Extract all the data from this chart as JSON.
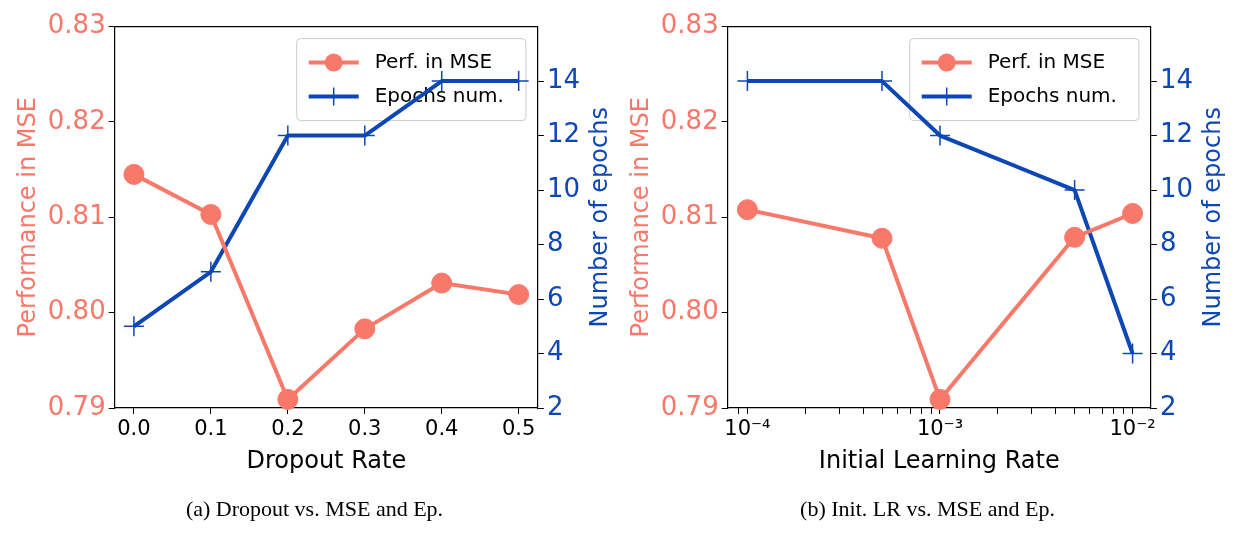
{
  "chart_data": [
    {
      "type": "line",
      "xlabel": "Dropout Rate",
      "ylabel": "Performance in MSE",
      "y2label": "Number of epochs",
      "x": [
        0.0,
        0.1,
        0.2,
        0.3,
        0.4,
        0.5
      ],
      "series": [
        {
          "name": "Perf. in MSE",
          "color": "#f8786a",
          "marker": "circle",
          "values": [
            0.8145,
            0.8103,
            0.7909,
            0.7983,
            0.8031,
            0.8019
          ]
        },
        {
          "name": "Epochs num.",
          "color": "#0d47b5",
          "marker": "cross",
          "axis": "y2",
          "values": [
            5,
            7,
            12,
            12,
            14,
            14
          ]
        }
      ],
      "xlim": [
        -0.025,
        0.525
      ],
      "xticks": [
        {
          "value": 0,
          "label": "0.0"
        },
        0.1,
        0.2,
        0.3,
        0.4,
        0.5
      ],
      "ylim": [
        0.79,
        0.83
      ],
      "yticks": [
        0.79,
        {
          "value": 0.8,
          "label": "0.80"
        },
        0.81,
        0.82,
        0.83
      ],
      "y2lim": [
        2,
        16
      ],
      "y2ticks": [
        2,
        4,
        6,
        8,
        10,
        12,
        14
      ],
      "grid": false,
      "legend": "top right",
      "annotations": [
        "(a) Dropout vs. MSE and Ep."
      ]
    },
    {
      "type": "line",
      "xlabel": "Initial Learning Rate",
      "ylabel": "Performance in MSE",
      "y2label": "Number of epochs",
      "x": [
        0.0001,
        0.0005,
        0.001,
        0.005,
        0.01
      ],
      "series": [
        {
          "name": "Perf. in MSE",
          "color": "#f8786a",
          "marker": "circle",
          "values": [
            0.8108,
            0.8078,
            0.7909,
            0.8079,
            0.8104
          ]
        },
        {
          "name": "Epochs num.",
          "color": "#0d47b5",
          "marker": "cross",
          "axis": "y2",
          "values": [
            14,
            14,
            12,
            10,
            4
          ]
        }
      ],
      "log": "x",
      "xlim": [
        7.9e-05,
        0.01245
      ],
      "xticks": [
        {
          "value": 9e-05,
          "label": null
        },
        {
          "value": 0.0001,
          "label": "10⁻⁴"
        },
        {
          "value": 0.0002,
          "label": null
        },
        {
          "value": 0.0003,
          "label": null
        },
        {
          "value": 0.0004,
          "label": null
        },
        {
          "value": 0.0005,
          "label": null
        },
        {
          "value": 0.0006,
          "label": null
        },
        {
          "value": 0.0007,
          "label": null
        },
        {
          "value": 0.0008,
          "label": null
        },
        {
          "value": 0.0009,
          "label": null
        },
        {
          "value": 0.001,
          "label": "10⁻³"
        },
        {
          "value": 0.002,
          "label": null
        },
        {
          "value": 0.003,
          "label": null
        },
        {
          "value": 0.004,
          "label": null
        },
        {
          "value": 0.005,
          "label": null
        },
        {
          "value": 0.006,
          "label": null
        },
        {
          "value": 0.007,
          "label": null
        },
        {
          "value": 0.008,
          "label": null
        },
        {
          "value": 0.009,
          "label": null
        },
        {
          "value": 0.01,
          "label": "10⁻²"
        }
      ],
      "ylim": [
        0.79,
        0.83
      ],
      "yticks": [
        0.79,
        {
          "value": 0.8,
          "label": "0.80"
        },
        0.81,
        0.82,
        0.83
      ],
      "y2lim": [
        2,
        16
      ],
      "y2ticks": [
        2,
        4,
        6,
        8,
        10,
        12,
        14
      ],
      "grid": false,
      "legend": "top right",
      "annotations": [
        "(b) Init. LR vs. MSE and Ep."
      ]
    }
  ]
}
